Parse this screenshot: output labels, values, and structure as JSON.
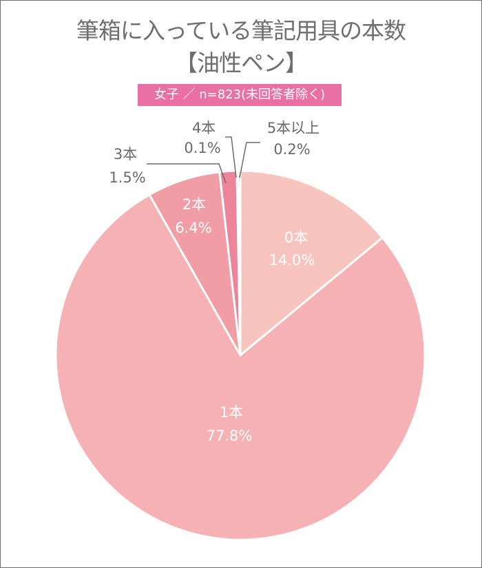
{
  "title": {
    "line1": "筆箱に入っている筆記用具の本数",
    "line2": "【油性ペン】"
  },
  "badge": {
    "text": "女子 ／ n=823(未回答者除く)",
    "color": "#ea6fa2"
  },
  "chart_data": {
    "type": "pie",
    "title": "筆箱に入っている筆記用具の本数【油性ペン】",
    "subtitle": "女子 ／ n=823(未回答者除く)",
    "categories": [
      "0本",
      "1本",
      "2本",
      "3本",
      "4本",
      "5本以上"
    ],
    "values": [
      14.0,
      77.8,
      6.4,
      1.5,
      0.1,
      0.2
    ],
    "unit": "%",
    "colors": [
      "#f7c5bd",
      "#f5b1b3",
      "#f09da6",
      "#ec8599",
      "#e8698a",
      "#e0457a"
    ],
    "start_angle": "12 o'clock, clockwise",
    "legend": "none (labels on slices)"
  },
  "labels": {
    "s0": {
      "name": "0本",
      "pct": "14.0%"
    },
    "s1": {
      "name": "1本",
      "pct": "77.8%"
    },
    "s2": {
      "name": "2本",
      "pct": "6.4%"
    },
    "s3": {
      "name": "3本",
      "pct": "1.5%"
    },
    "s4": {
      "name": "4本",
      "pct": "0.1%"
    },
    "s5": {
      "name": "5本以上",
      "pct": "0.2%"
    }
  }
}
